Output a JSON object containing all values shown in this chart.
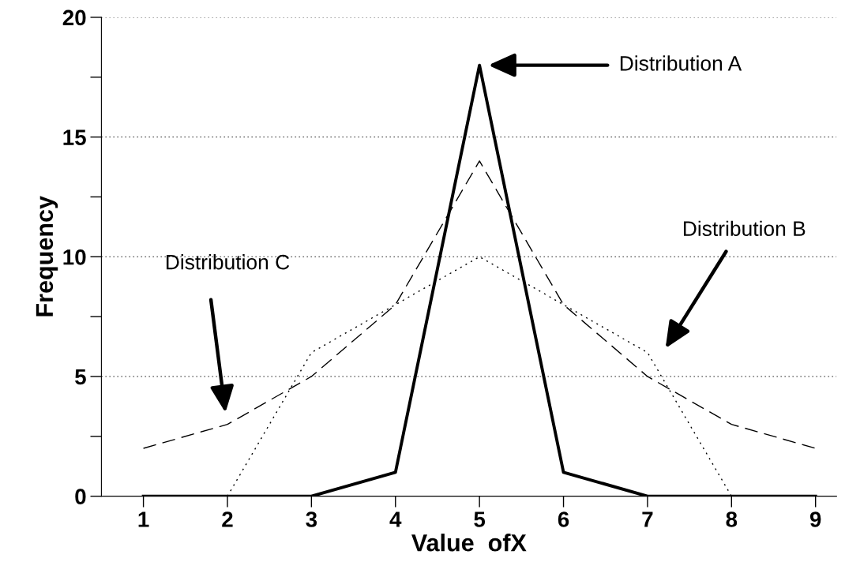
{
  "chart_data": {
    "type": "line",
    "xlabel": "Value  ofX",
    "ylabel": "Frequency",
    "x": [
      1,
      2,
      3,
      4,
      5,
      6,
      7,
      8,
      9
    ],
    "series": [
      {
        "color": "#000000",
        "line_style": "solid",
        "values": [
          0,
          0,
          0,
          1,
          18,
          1,
          0,
          0,
          0
        ]
      },
      {
        "color": "#000000",
        "line_style": "dotted",
        "values": [
          null,
          0,
          6,
          8,
          10,
          8,
          6,
          0,
          null
        ]
      },
      {
        "color": "#000000",
        "line_style": "dashed",
        "values": [
          2,
          3,
          5,
          8,
          14,
          8,
          5,
          3,
          2
        ]
      }
    ],
    "xlim": [
      0.5,
      9.25
    ],
    "xticks": [
      1,
      2,
      3,
      4,
      5,
      6,
      7,
      8,
      9
    ],
    "ylim": [
      0,
      20
    ],
    "yticks": [
      0,
      {
        "value": 2.5,
        "label": null
      },
      5,
      {
        "value": 7.5,
        "label": null
      },
      10,
      {
        "value": 12.5,
        "label": null
      },
      15,
      {
        "value": 17.5,
        "label": null
      },
      20
    ],
    "grid": "y",
    "legend": false,
    "marker": "none",
    "annotations": [
      "Distribution A",
      "Distribution B",
      "Distribution C"
    ]
  }
}
